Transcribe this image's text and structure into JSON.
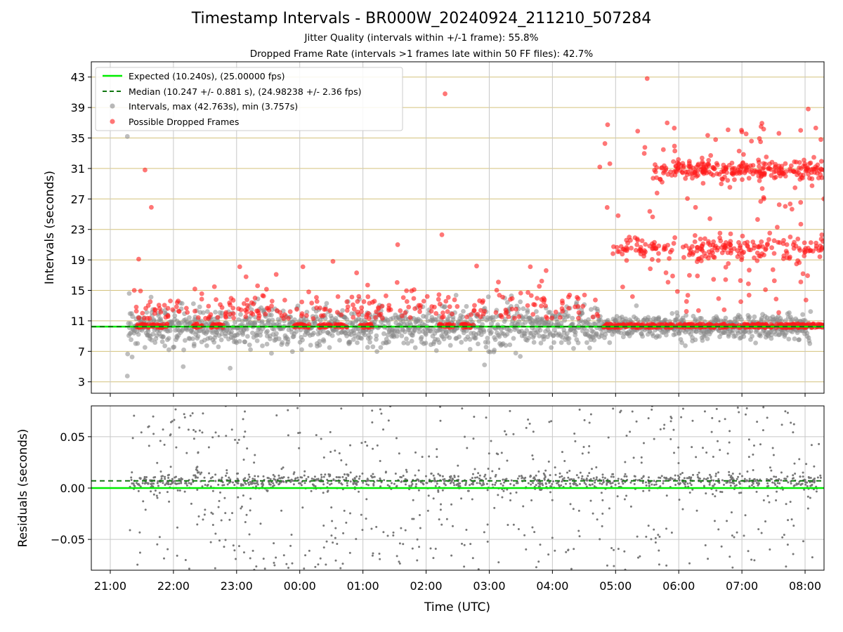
{
  "title": "Timestamp Intervals - BR000W_20240924_211210_507284",
  "subtitle_1": "Jitter Quality (intervals within +/-1 frame): 55.8%",
  "subtitle_2": "Dropped Frame Rate (intervals >1 frames late within 50 FF files): 42.7%",
  "colors": {
    "expected": "#00ee00",
    "median": "#117711",
    "intervals": "#888888",
    "dropped": "#ff1a1a",
    "hgrid": "#d4c27c",
    "vgrid": "#c8c8c8"
  },
  "chart_data": [
    {
      "type": "scatter",
      "title": "",
      "xlabel": "",
      "ylabel": "Intervals (seconds)",
      "x_unit": "hours since 21:00 UTC",
      "xlim": [
        -0.3,
        11.3
      ],
      "ylim": [
        1.5,
        45.0
      ],
      "yticks": [
        3,
        7,
        11,
        15,
        19,
        23,
        27,
        31,
        35,
        39,
        43
      ],
      "grid": "on",
      "legend_position": "top-left",
      "legend": [
        "Expected (10.240s), (25.00000 fps)",
        "Median (10.247 +/- 0.881 s), (24.98238 +/- 2.36 fps)",
        "Intervals, max (42.763s), min (3.757s)",
        "Possible Dropped Frames"
      ],
      "series": [
        {
          "name": "Expected (10.240s), (25.00000 fps)",
          "kind": "hline",
          "y": 10.24
        },
        {
          "name": "Median (10.247 +/- 0.881 s), (24.98238 +/- 2.36 fps)",
          "kind": "hline-dashed",
          "y": 10.247
        },
        {
          "name": "Intervals, max (42.763s), min (3.757s)",
          "kind": "scatter",
          "time_range": [
            "21:17",
            "08:20"
          ],
          "center": 10.24,
          "spread": 1.5,
          "max": 42.763,
          "min": 3.757
        },
        {
          "name": "Possible Dropped Frames",
          "kind": "scatter",
          "time_range": [
            "21:20",
            "08:20"
          ],
          "clusters": [
            10.3,
            20.5,
            30.8
          ]
        }
      ]
    },
    {
      "type": "scatter",
      "title": "",
      "xlabel": "Time (UTC)",
      "ylabel": "Residuals (seconds)",
      "x_unit": "hours since 21:00 UTC",
      "xlim": [
        -0.3,
        11.3
      ],
      "ylim": [
        -0.08,
        0.08
      ],
      "yticks": [
        0.05,
        0.0,
        -0.05
      ],
      "ytick_labels": [
        "0.05",
        "0.00",
        "−0.05"
      ],
      "xticks": [
        0,
        1,
        2,
        3,
        4,
        5,
        6,
        7,
        8,
        9,
        10,
        11
      ],
      "xtick_labels": [
        "21:00",
        "22:00",
        "23:00",
        "00:00",
        "01:00",
        "02:00",
        "03:00",
        "04:00",
        "05:00",
        "06:00",
        "07:00",
        "08:00"
      ],
      "grid": "on",
      "series": [
        {
          "name": "Expected",
          "kind": "hline",
          "y": 0.0
        },
        {
          "name": "Median",
          "kind": "hline-dashed",
          "y": 0.007
        },
        {
          "name": "Residuals",
          "kind": "scatter",
          "center": 0.006,
          "range": [
            -0.08,
            0.08
          ]
        }
      ]
    }
  ]
}
